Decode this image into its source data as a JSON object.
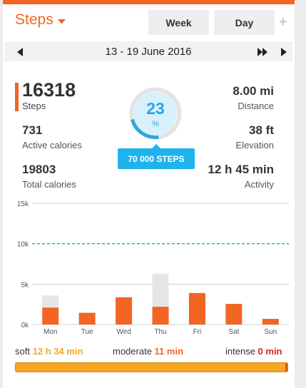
{
  "header": {
    "title": "Steps",
    "tabs": [
      "Week",
      "Day"
    ],
    "add_symbol": "+"
  },
  "date_nav": {
    "range": "13 - 19 June 2016"
  },
  "summary": {
    "steps_value": "16318",
    "steps_label": "Steps",
    "active_calories_value": "731",
    "active_calories_label": "Active calories",
    "total_calories_value": "19803",
    "total_calories_label": "Total calories",
    "distance_value": "8.00 mi",
    "distance_label": "Distance",
    "elevation_value": "38 ft",
    "elevation_label": "Elevation",
    "activity_value": "12 h 45 min",
    "activity_label": "Activity"
  },
  "goal": {
    "percent": "23",
    "percent_symbol": "%",
    "progress_fraction": 0.23,
    "goal_label": "70 000 STEPS"
  },
  "chart_data": {
    "type": "bar",
    "categories": [
      "Mon",
      "Tue",
      "Wed",
      "Thu",
      "Fri",
      "Sat",
      "Sun"
    ],
    "series": [
      {
        "values": [
          2100,
          1450,
          3350,
          2200,
          3900,
          2550,
          700
        ]
      },
      {
        "values": [
          1500,
          0,
          100,
          4100,
          0,
          0,
          0
        ]
      }
    ],
    "goal_line": 10000,
    "ylim": [
      0,
      15000
    ],
    "yticks": [
      0,
      5000,
      10000,
      15000
    ],
    "ytick_labels": [
      "0k",
      "5k",
      "10k",
      "15k"
    ],
    "colors": {
      "primary": "#f26522",
      "secondary": "#e6e6e6",
      "goal_line": "#29a8e0"
    }
  },
  "intensity": {
    "soft_label": "soft",
    "soft_value": "12 h 34 min",
    "moderate_label": "moderate",
    "moderate_value": "11 min",
    "intense_label": "intense",
    "intense_value": "0 min"
  },
  "colors": {
    "accent": "#f26522",
    "blue": "#29a8e0",
    "soft": "#f5a623",
    "intense": "#e02020"
  }
}
